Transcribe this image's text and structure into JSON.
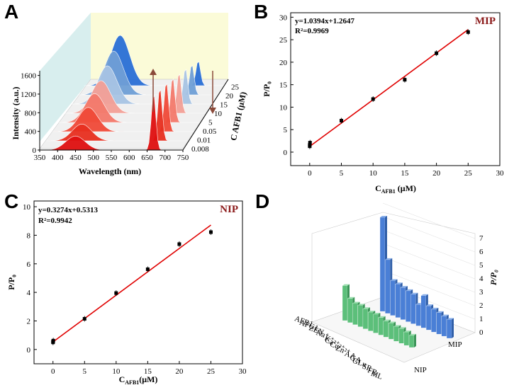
{
  "chart_data": [
    {
      "panel": "A",
      "type": "area",
      "title": "",
      "xlabel": "Wavelength (nm)",
      "ylabel": "Intensity (a.u.)",
      "zlabel": "C AFB1 (μM)",
      "xticks": [
        "350",
        "400",
        "450",
        "500",
        "550",
        "600",
        "650",
        "700",
        "750"
      ],
      "yticks": [
        "0",
        "400",
        "800",
        "1200",
        "1600"
      ],
      "zticks": [
        "0.008",
        "0.01",
        "0.05",
        "5",
        "10",
        "15",
        "20",
        "25"
      ],
      "series": [
        {
          "name": "0.008",
          "peak1": 300,
          "peak2": 1220
        },
        {
          "name": "0.01",
          "peak1": 360,
          "peak2": 1150
        },
        {
          "name": "0.05",
          "peak1": 520,
          "peak2": 1080
        },
        {
          "name": "5",
          "peak1": 620,
          "peak2": 980
        },
        {
          "name": "10",
          "peak1": 700,
          "peak2": 880
        },
        {
          "name": "15",
          "peak1": 820,
          "peak2": 780
        },
        {
          "name": "20",
          "peak1": 940,
          "peak2": 660
        },
        {
          "name": "25",
          "peak1": 1080,
          "peak2": 540
        }
      ]
    },
    {
      "panel": "B",
      "type": "scatter",
      "tag": "MIP",
      "equation": "y=1.0394x+1.2647",
      "r2": "R²=0.9969",
      "xlabel_main": "C",
      "xlabel_sub": "AFB1",
      "xlabel_unit": " (μM)",
      "ylabel": "P/P₀",
      "xlim": [
        -3,
        30
      ],
      "ylim": [
        -3,
        31
      ],
      "xticks": [
        0,
        5,
        10,
        15,
        20,
        25,
        30
      ],
      "yticks": [
        0,
        5,
        10,
        15,
        20,
        25,
        30
      ],
      "x": [
        0.008,
        0.01,
        0.05,
        5,
        10,
        15,
        20,
        25
      ],
      "y": [
        1.3,
        1.6,
        2.1,
        7.0,
        11.8,
        16.1,
        22.0,
        26.7
      ],
      "fit": {
        "slope": 1.0394,
        "intercept": 1.2647
      }
    },
    {
      "panel": "C",
      "type": "scatter",
      "tag": "NIP",
      "equation": "y=0.3274x+0.5313",
      "r2": "R²=0.9942",
      "xlabel_main": "C",
      "xlabel_sub": "AFB1",
      "xlabel_unit": "(μM)",
      "ylabel": "P/P₀",
      "xlim": [
        -3,
        30
      ],
      "ylim": [
        -1,
        10.4
      ],
      "xticks": [
        0,
        5,
        10,
        15,
        20,
        25,
        30
      ],
      "yticks": [
        0,
        2,
        4,
        6,
        8,
        10
      ],
      "x": [
        0.008,
        0.01,
        0.05,
        5,
        10,
        15,
        20,
        25
      ],
      "y": [
        0.5,
        0.55,
        0.62,
        2.15,
        3.95,
        5.62,
        7.38,
        8.22
      ],
      "fit": {
        "slope": 0.3274,
        "intercept": 0.5313
      }
    },
    {
      "panel": "D",
      "type": "bar",
      "ylabel": "P/P₀",
      "zticks": [
        "0",
        "1",
        "2",
        "3",
        "4",
        "5",
        "6",
        "7"
      ],
      "categories": [
        "AFB1",
        "AFG1",
        "ZEN",
        "Na⁺",
        "K⁺",
        "Ca²⁺",
        "Cu²⁺",
        "Zn²⁺",
        "AA",
        "GA",
        "GLu",
        "SR",
        "FR",
        "ML"
      ],
      "series": [
        {
          "name": "MIP",
          "values": [
            7.0,
            4.0,
            2.6,
            2.5,
            2.4,
            2.3,
            2.2,
            1.6,
            2.4,
            1.8,
            1.7,
            1.6,
            1.5,
            1.4
          ]
        },
        {
          "name": "NIP",
          "values": [
            2.6,
            1.8,
            1.6,
            1.6,
            1.5,
            1.4,
            1.4,
            1.3,
            1.2,
            1.2,
            1.1,
            1.1,
            1.0,
            0.9
          ]
        }
      ]
    }
  ],
  "panels": {
    "a": "A",
    "b": "B",
    "c": "C",
    "d": "D"
  }
}
